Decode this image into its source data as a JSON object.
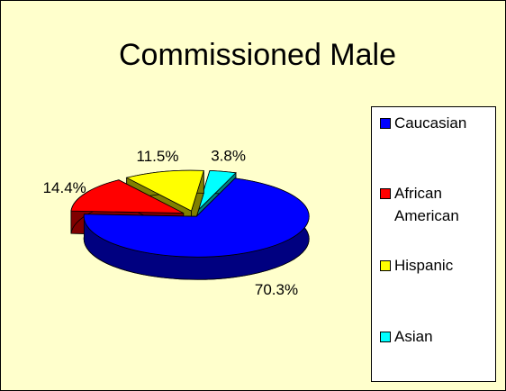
{
  "chart_data": {
    "type": "pie",
    "title": "Commissioned Male",
    "categories": [
      "Caucasian",
      "African American",
      "Hispanic",
      "Asian"
    ],
    "values": [
      70.3,
      14.4,
      11.5,
      3.8
    ],
    "value_labels": [
      "70.3%",
      "14.4%",
      "11.5%",
      "3.8%"
    ],
    "colors": [
      "#0000ff",
      "#ff0000",
      "#ffff00",
      "#00ffff"
    ],
    "legend": "right"
  }
}
